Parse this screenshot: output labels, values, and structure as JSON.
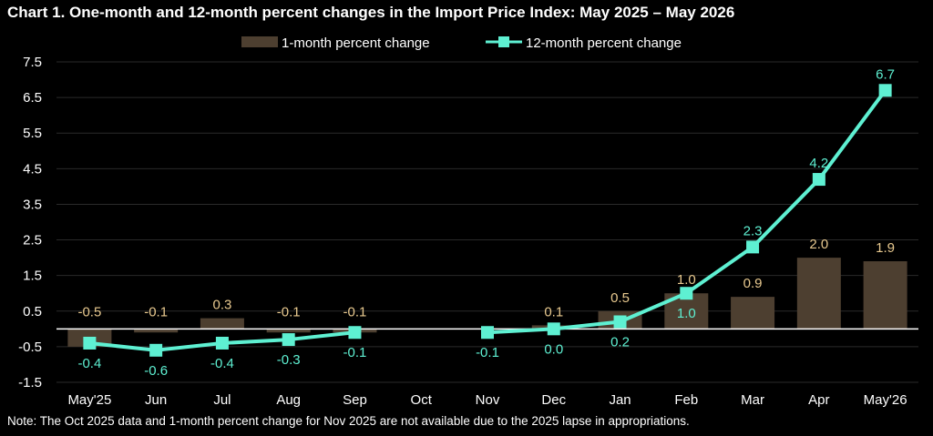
{
  "title": "Chart 1. One-month and 12-month percent changes in the Import Price Index: May 2025 – May 2026",
  "note": "Note: The Oct 2025 data and 1-month percent change for Nov 2025 are not available due to the 2025 lapse in appropriations.",
  "colors": {
    "background": "#000000",
    "bar": "#4d3f30",
    "bar_label": "#e8c98f",
    "line": "#5ef0d2",
    "line_label": "#5ef0d2",
    "axis_text": "#ffffff",
    "grid": "#2a2a2a",
    "zero_line": "#ffffff"
  },
  "chart_data": {
    "type": "bar",
    "categories": [
      "May'25",
      "Jun",
      "Jul",
      "Aug",
      "Sep",
      "Oct",
      "Nov",
      "Dec",
      "Jan",
      "Feb",
      "Mar",
      "Apr",
      "May'26"
    ],
    "ylim": [
      -1.5,
      7.5
    ],
    "yticks": [
      -1.5,
      -0.5,
      0.5,
      1.5,
      2.5,
      3.5,
      4.5,
      5.5,
      6.5,
      7.5
    ],
    "grid": true,
    "legend_position": "top-center",
    "series": [
      {
        "name": "1-month percent change",
        "type": "bar",
        "values": [
          -0.5,
          -0.1,
          0.3,
          -0.1,
          -0.1,
          null,
          null,
          0.1,
          0.5,
          1.0,
          0.9,
          2.0,
          1.9
        ],
        "labels": [
          "-0.5",
          "-0.1",
          "0.3",
          "-0.1",
          "-0.1",
          null,
          null,
          "0.1",
          "0.5",
          "1.0",
          "0.9",
          "2.0",
          "1.9"
        ]
      },
      {
        "name": "12-month percent change",
        "type": "line",
        "values": [
          -0.4,
          -0.6,
          -0.4,
          -0.3,
          -0.1,
          null,
          -0.1,
          0.0,
          0.2,
          1.0,
          2.3,
          4.2,
          6.7
        ],
        "labels": [
          "-0.4",
          "-0.6",
          "-0.4",
          "-0.3",
          "-0.1",
          null,
          "-0.1",
          "0.0",
          "0.2",
          "1.0",
          "2.3",
          "4.2",
          "6.7"
        ]
      }
    ]
  }
}
